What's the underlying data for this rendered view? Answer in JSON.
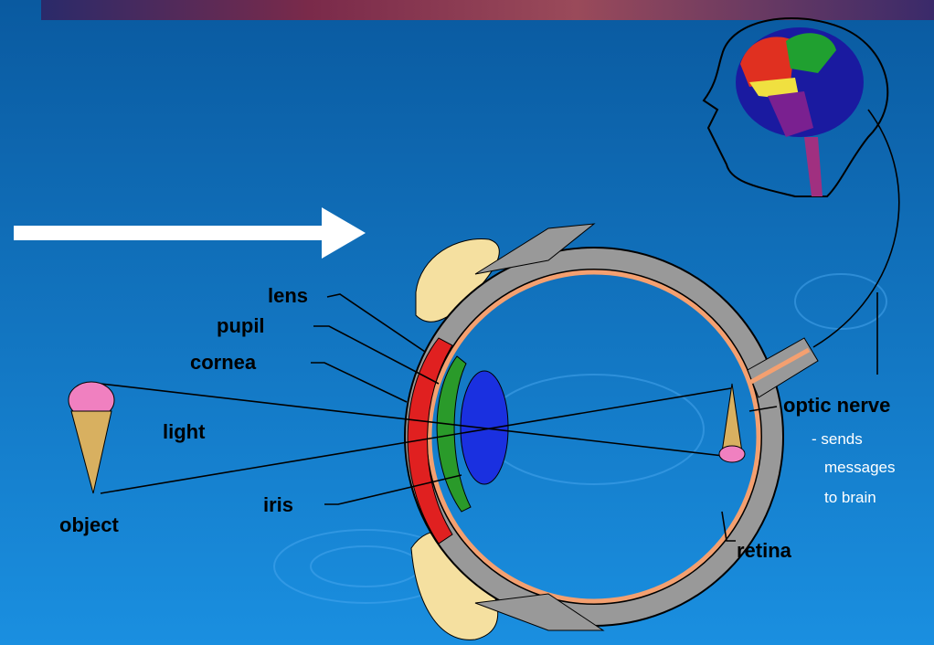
{
  "diagram": {
    "labels": {
      "lens": "lens",
      "pupil": "pupil",
      "cornea": "cornea",
      "light": "light",
      "object": "object",
      "iris": "iris",
      "optic_nerve": "optic nerve",
      "retina": "retina"
    },
    "note": [
      "- sends",
      "messages",
      "to brain"
    ]
  }
}
